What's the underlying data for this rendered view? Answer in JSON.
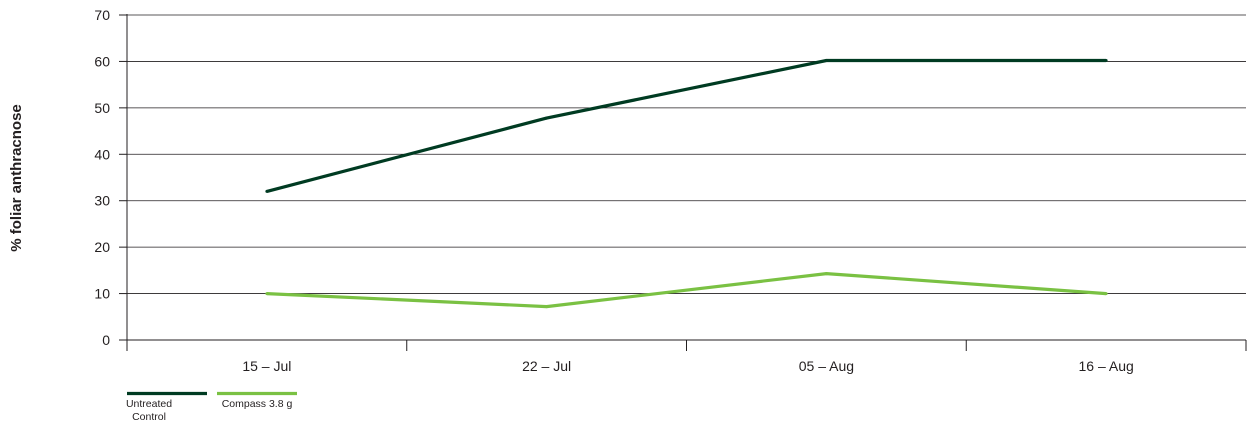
{
  "chart_data": {
    "type": "line",
    "title": "",
    "xlabel": "",
    "ylabel": "% foliar anthracnose",
    "categories": [
      "15 – Jul",
      "22 – Jul",
      "05 – Aug",
      "16 – Aug"
    ],
    "ylim": [
      0,
      70
    ],
    "yticks": [
      0,
      10,
      20,
      30,
      40,
      50,
      60,
      70
    ],
    "grid": true,
    "legend_position": "bottom-left",
    "series": [
      {
        "name": "Untreated Control",
        "name_lines": [
          "Untreated",
          "Control"
        ],
        "color": "#003b22",
        "values": [
          32,
          47.8,
          60.2,
          60.2
        ]
      },
      {
        "name": "Compass 3.8 g",
        "name_lines": [
          "Compass 3.8 g"
        ],
        "color": "#7ac143",
        "values": [
          10,
          7.2,
          14.3,
          10
        ]
      }
    ]
  }
}
